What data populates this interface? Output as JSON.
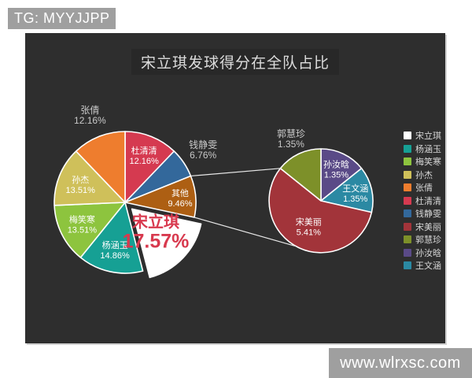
{
  "page": {
    "top_banner": "TG: MYYJJPP",
    "bottom_banner": "www.wlrxsc.com"
  },
  "colors": {
    "page_background": "#ffffff",
    "panel_background": "#2e2e2e",
    "banner_background": "#9f9f9f",
    "banner_text": "#ffffff",
    "title_text": "#dcdcdc",
    "inside_label_text": "#ffffff",
    "outside_label_text": "#c9c9c9",
    "highlight_text": "#d8394e"
  },
  "chart": {
    "title": "宋立琪发球得分在全队占比",
    "highlight_color": "#d8394e",
    "main_pie": {
      "slices": [
        {
          "name": "杜清清",
          "value": 12.16,
          "color": "#d53a50",
          "label": "inside"
        },
        {
          "name": "钱静雯",
          "value": 6.76,
          "color": "#33689b",
          "label": "outside"
        },
        {
          "name": "其他",
          "value": 9.46,
          "color": "#ad5f13",
          "label": "inside"
        },
        {
          "name": "宋立琪",
          "value": 17.57,
          "color": "#ffffff",
          "label": "highlight",
          "exploded": true
        },
        {
          "name": "杨涵玉",
          "value": 14.86,
          "color": "#16a094",
          "label": "inside"
        },
        {
          "name": "梅笑寒",
          "value": 13.51,
          "color": "#8dc43e",
          "label": "inside"
        },
        {
          "name": "孙杰",
          "value": 13.51,
          "color": "#cfc05a",
          "label": "inside"
        },
        {
          "name": "张倩",
          "value": 12.16,
          "color": "#ee7d2e",
          "label": "outside"
        }
      ]
    },
    "detail_pie": {
      "slices": [
        {
          "name": "孙汝晗",
          "value": 1.35,
          "color": "#5a4a87",
          "label": "inside"
        },
        {
          "name": "王文涵",
          "value": 1.35,
          "color": "#2b89a3",
          "label": "inside"
        },
        {
          "name": "宋美丽",
          "value": 5.41,
          "color": "#a2343a",
          "label": "inside"
        },
        {
          "name": "郭慧珍",
          "value": 1.35,
          "color": "#7d9029",
          "label": "outside"
        }
      ]
    },
    "legend": [
      {
        "name": "宋立琪",
        "color": "#ffffff"
      },
      {
        "name": "杨涵玉",
        "color": "#16a094"
      },
      {
        "name": "梅笑寒",
        "color": "#8dc43e"
      },
      {
        "name": "孙杰",
        "color": "#cfc05a"
      },
      {
        "name": "张倩",
        "color": "#ee7d2e"
      },
      {
        "name": "杜清清",
        "color": "#d53a50"
      },
      {
        "name": "钱静雯",
        "color": "#33689b"
      },
      {
        "name": "宋美丽",
        "color": "#a2343a"
      },
      {
        "name": "郭慧珍",
        "color": "#7d9029"
      },
      {
        "name": "孙汝晗",
        "color": "#5a4a87"
      },
      {
        "name": "王文涵",
        "color": "#2b89a3"
      }
    ]
  },
  "chart_data": [
    {
      "type": "pie",
      "title": "宋立琪发球得分在全队占比",
      "categories": [
        "杜清清",
        "钱静雯",
        "其他",
        "宋立琪",
        "杨涵玉",
        "梅笑寒",
        "孙杰",
        "张倩"
      ],
      "values": [
        12.16,
        6.76,
        9.46,
        17.57,
        14.86,
        13.51,
        13.51,
        12.16
      ],
      "unit": "%",
      "highlighted": "宋立琪",
      "legend_position": "right",
      "legend": [
        "宋立琪",
        "杨涵玉",
        "梅笑寒",
        "孙杰",
        "张倩",
        "杜清清",
        "钱静雯",
        "宋美丽",
        "郭慧珍",
        "孙汝晗",
        "王文涵"
      ]
    },
    {
      "type": "pie",
      "note": "breakout of 其他 slice",
      "categories": [
        "孙汝晗",
        "王文涵",
        "宋美丽",
        "郭慧珍"
      ],
      "values": [
        1.35,
        1.35,
        5.41,
        1.35
      ],
      "unit": "%"
    }
  ]
}
